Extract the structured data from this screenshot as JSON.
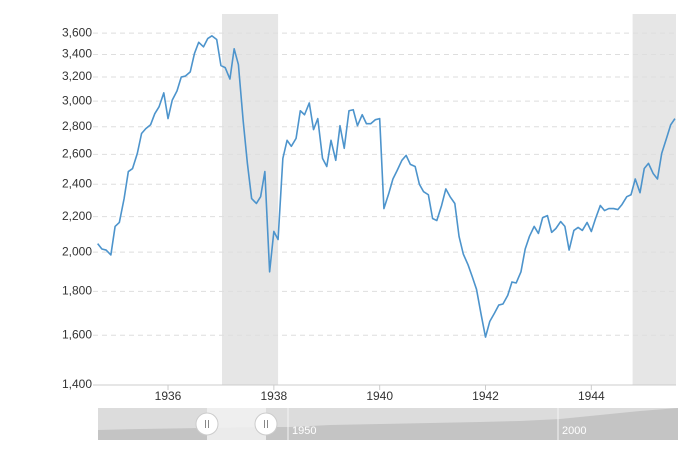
{
  "chart_data": {
    "type": "line",
    "x": [
      1934.67,
      1934.75,
      1934.83,
      1934.92,
      1935.0,
      1935.08,
      1935.17,
      1935.25,
      1935.33,
      1935.42,
      1935.5,
      1935.58,
      1935.67,
      1935.75,
      1935.83,
      1935.92,
      1936.0,
      1936.08,
      1936.17,
      1936.25,
      1936.33,
      1936.42,
      1936.5,
      1936.58,
      1936.67,
      1936.75,
      1936.83,
      1936.92,
      1937.0,
      1937.08,
      1937.17,
      1937.25,
      1937.33,
      1937.42,
      1937.5,
      1937.58,
      1937.67,
      1937.75,
      1937.83,
      1937.92,
      1938.0,
      1938.08,
      1938.17,
      1938.25,
      1938.33,
      1938.42,
      1938.5,
      1938.58,
      1938.67,
      1938.75,
      1938.83,
      1938.92,
      1939.0,
      1939.08,
      1939.17,
      1939.25,
      1939.33,
      1939.42,
      1939.5,
      1939.58,
      1939.67,
      1939.75,
      1939.83,
      1939.92,
      1940.0,
      1940.08,
      1940.17,
      1940.25,
      1940.33,
      1940.42,
      1940.5,
      1940.58,
      1940.67,
      1940.75,
      1940.83,
      1940.92,
      1941.0,
      1941.08,
      1941.17,
      1941.25,
      1941.33,
      1941.42,
      1941.5,
      1941.58,
      1941.67,
      1941.75,
      1941.83,
      1941.92,
      1942.0,
      1942.08,
      1942.17,
      1942.25,
      1942.33,
      1942.42,
      1942.5,
      1942.58,
      1942.67,
      1942.75,
      1942.83,
      1942.92,
      1943.0,
      1943.08,
      1943.17,
      1943.25,
      1943.33,
      1943.42,
      1943.5,
      1943.58,
      1943.67,
      1943.75,
      1943.83,
      1943.92,
      1944.0,
      1944.08,
      1944.17,
      1944.25,
      1944.33,
      1944.42,
      1944.5,
      1944.58,
      1944.67,
      1944.75,
      1944.83,
      1944.92,
      1945.0,
      1945.08,
      1945.17,
      1945.25,
      1945.33,
      1945.42,
      1945.5,
      1945.58
    ],
    "values": [
      2046,
      2017,
      2011,
      1985,
      2143,
      2166,
      2309,
      2483,
      2503,
      2607,
      2750,
      2786,
      2815,
      2900,
      2954,
      3067,
      2862,
      3008,
      3083,
      3200,
      3209,
      3245,
      3409,
      3513,
      3470,
      3548,
      3574,
      3539,
      3300,
      3282,
      3183,
      3452,
      3309,
      2846,
      2538,
      2309,
      2279,
      2321,
      2483,
      1897,
      2114,
      2069,
      2572,
      2700,
      2657,
      2714,
      2923,
      2892,
      2985,
      2779,
      2862,
      2572,
      2517,
      2700,
      2559,
      2808,
      2643,
      2923,
      2931,
      2808,
      2892,
      2823,
      2823,
      2854,
      2862,
      2248,
      2339,
      2434,
      2490,
      2559,
      2593,
      2531,
      2517,
      2400,
      2352,
      2333,
      2189,
      2177,
      2267,
      2370,
      2321,
      2279,
      2086,
      1990,
      1933,
      1872,
      1810,
      1688,
      1592,
      1660,
      1698,
      1735,
      1740,
      1781,
      1846,
      1841,
      1897,
      2017,
      2086,
      2143,
      2103,
      2194,
      2206,
      2109,
      2131,
      2171,
      2143,
      2011,
      2120,
      2137,
      2120,
      2166,
      2114,
      2189,
      2267,
      2236,
      2248,
      2248,
      2242,
      2273,
      2321,
      2333,
      2434,
      2346,
      2503,
      2538,
      2469,
      2434,
      2607,
      2714,
      2815,
      2862
    ],
    "color": "#4d94cc",
    "shaded_ranges": [
      [
        1937.02,
        1938.08
      ],
      [
        1944.78,
        1945.6
      ]
    ],
    "xlim": [
      1934.62,
      1945.6
    ],
    "xticks": [
      1936,
      1938,
      1940,
      1942,
      1944
    ],
    "ylim": [
      1400,
      3790
    ],
    "yscale": "log",
    "yticks": [
      {
        "value": 1400,
        "label": "1,400"
      },
      {
        "value": 1600,
        "label": "1,600"
      },
      {
        "value": 1800,
        "label": "1,800"
      },
      {
        "value": 2000,
        "label": "2,000"
      },
      {
        "value": 2200,
        "label": "2,200"
      },
      {
        "value": 2400,
        "label": "2,400"
      },
      {
        "value": 2600,
        "label": "2,600"
      },
      {
        "value": 2800,
        "label": "2,800"
      },
      {
        "value": 3000,
        "label": "3,000"
      },
      {
        "value": 3200,
        "label": "3,200"
      },
      {
        "value": 3400,
        "label": "3,400"
      },
      {
        "value": 3600,
        "label": "3,600"
      }
    ],
    "grid": true,
    "navigator_labels": [
      "1950",
      "2000"
    ]
  }
}
